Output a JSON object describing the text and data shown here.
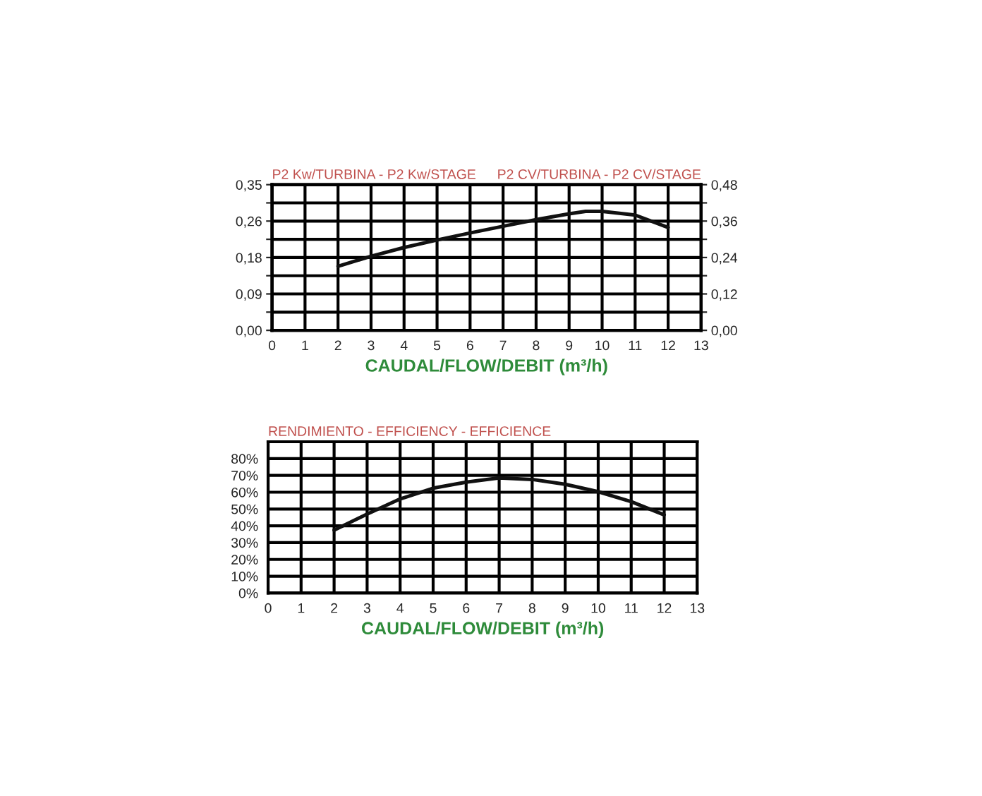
{
  "chart_data": [
    {
      "type": "line",
      "ylabel": "P2 Kw/TURBINA - P2 Kw/STAGE",
      "y2label": "P2 CV/TURBINA - P2 CV/STAGE",
      "xlabel": "CAUDAL/FLOW/DEBIT (m³/h)",
      "x": [
        2,
        3,
        4,
        5,
        6,
        7,
        8,
        9,
        9.5,
        10,
        11,
        12
      ],
      "series": [
        {
          "color": "#111111",
          "values": [
            0.154,
            0.178,
            0.199,
            0.217,
            0.234,
            0.25,
            0.266,
            0.28,
            0.286,
            0.286,
            0.277,
            0.247
          ]
        }
      ],
      "xlim": [
        0,
        13
      ],
      "xticks": [
        0,
        1,
        2,
        3,
        4,
        5,
        6,
        7,
        8,
        9,
        10,
        11,
        12,
        13
      ],
      "ylim": [
        0,
        0.35
      ],
      "yticks": [
        {
          "value": 0,
          "label": "0,00"
        },
        {
          "value": 0.04375,
          "label": null
        },
        {
          "value": 0.0875,
          "label": "0,09"
        },
        {
          "value": 0.13125,
          "label": null
        },
        {
          "value": 0.175,
          "label": "0,18"
        },
        {
          "value": 0.21875,
          "label": null
        },
        {
          "value": 0.2625,
          "label": "0,26"
        },
        {
          "value": 0.30625,
          "label": null
        },
        {
          "value": 0.35,
          "label": "0,35"
        }
      ],
      "y2lim": [
        0,
        0.48
      ],
      "y2ticks": [
        {
          "value": 0,
          "label": "0,00"
        },
        {
          "value": 0.06,
          "label": null
        },
        {
          "value": 0.12,
          "label": "0,12"
        },
        {
          "value": 0.18,
          "label": null
        },
        {
          "value": 0.24,
          "label": "0,24"
        },
        {
          "value": 0.3,
          "label": null
        },
        {
          "value": 0.36,
          "label": "0,36"
        },
        {
          "value": 0.42,
          "label": null
        },
        {
          "value": 0.48,
          "label": "0,48"
        }
      ],
      "grid": true,
      "legend": false,
      "marker": "none",
      "line_style": "solid"
    },
    {
      "type": "line",
      "ylabel": "RENDIMIENTO - EFFICIENCY - EFFICIENCE",
      "xlabel": "CAUDAL/FLOW/DEBIT (m³/h)",
      "x": [
        2,
        3,
        4,
        5,
        6,
        7,
        8,
        9,
        10,
        11,
        12
      ],
      "series": [
        {
          "color": "#111111",
          "values": [
            37.4,
            47,
            56,
            62.4,
            66,
            68.5,
            67.6,
            64.7,
            60.3,
            54.4,
            46.5
          ]
        }
      ],
      "xlim": [
        0,
        13
      ],
      "xticks": [
        0,
        1,
        2,
        3,
        4,
        5,
        6,
        7,
        8,
        9,
        10,
        11,
        12,
        13
      ],
      "ylim": [
        0,
        90
      ],
      "yticks": [
        {
          "value": 0,
          "label": "0%"
        },
        {
          "value": 10,
          "label": "10%"
        },
        {
          "value": 20,
          "label": "20%"
        },
        {
          "value": 30,
          "label": "30%"
        },
        {
          "value": 40,
          "label": "40%"
        },
        {
          "value": 50,
          "label": "50%"
        },
        {
          "value": 60,
          "label": "60%"
        },
        {
          "value": 70,
          "label": "70%"
        },
        {
          "value": 80,
          "label": "80%"
        },
        {
          "value": 90,
          "label": null
        }
      ],
      "grid": true,
      "legend": false,
      "marker": "none",
      "line_style": "solid"
    }
  ]
}
